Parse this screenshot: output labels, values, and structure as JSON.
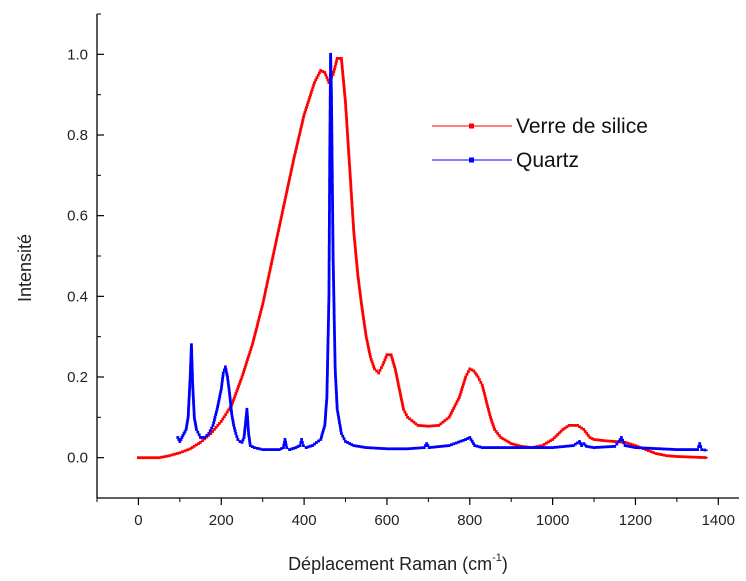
{
  "chart_data": {
    "type": "line",
    "title": "",
    "xlabel": "Déplacement Raman (cm",
    "xlabel_sup": "-1",
    "xlabel_end": ")",
    "ylabel": "Intensité",
    "xlim": [
      -100,
      1450
    ],
    "ylim": [
      -0.1,
      1.1
    ],
    "xticks": [
      0,
      200,
      400,
      600,
      800,
      1000,
      1200,
      1400
    ],
    "yticks": [
      0.0,
      0.2,
      0.4,
      0.6,
      0.8,
      1.0
    ],
    "xtick_labels": [
      "0",
      "200",
      "400",
      "600",
      "800",
      "1000",
      "1200",
      "1400"
    ],
    "ytick_labels": [
      "0.0",
      "0.2",
      "0.4",
      "0.6",
      "0.8",
      "1.0"
    ],
    "grid": false,
    "legend_position": "upper-right",
    "series": [
      {
        "name": "Verre de silice",
        "color": "#ff0000",
        "x": [
          0,
          50,
          75,
          100,
          125,
          150,
          175,
          200,
          225,
          250,
          275,
          300,
          325,
          350,
          375,
          400,
          425,
          440,
          450,
          460,
          470,
          480,
          490,
          500,
          510,
          520,
          530,
          540,
          550,
          560,
          570,
          580,
          590,
          600,
          610,
          620,
          630,
          640,
          650,
          675,
          700,
          725,
          750,
          775,
          790,
          800,
          810,
          820,
          830,
          840,
          850,
          860,
          875,
          900,
          925,
          950,
          975,
          1000,
          1025,
          1040,
          1060,
          1075,
          1090,
          1100,
          1125,
          1150,
          1175,
          1200,
          1225,
          1250,
          1275,
          1300,
          1325,
          1350,
          1375
        ],
        "y": [
          0.0,
          0.0,
          0.005,
          0.012,
          0.022,
          0.038,
          0.06,
          0.09,
          0.13,
          0.2,
          0.28,
          0.38,
          0.5,
          0.62,
          0.74,
          0.85,
          0.93,
          0.96,
          0.955,
          0.93,
          0.95,
          0.99,
          0.99,
          0.88,
          0.72,
          0.56,
          0.45,
          0.37,
          0.3,
          0.25,
          0.22,
          0.21,
          0.23,
          0.255,
          0.255,
          0.22,
          0.17,
          0.12,
          0.1,
          0.08,
          0.078,
          0.08,
          0.1,
          0.15,
          0.2,
          0.22,
          0.215,
          0.2,
          0.18,
          0.14,
          0.1,
          0.07,
          0.05,
          0.035,
          0.028,
          0.025,
          0.03,
          0.045,
          0.07,
          0.08,
          0.08,
          0.07,
          0.05,
          0.045,
          0.042,
          0.04,
          0.038,
          0.03,
          0.02,
          0.01,
          0.005,
          0.003,
          0.002,
          0.001,
          0.0
        ]
      },
      {
        "name": "Quartz",
        "color": "#0000ff",
        "x": [
          95,
          100,
          105,
          110,
          115,
          120,
          125,
          128,
          131,
          135,
          140,
          150,
          160,
          170,
          180,
          190,
          200,
          205,
          210,
          215,
          220,
          225,
          230,
          235,
          240,
          245,
          250,
          255,
          262,
          266,
          270,
          280,
          300,
          320,
          340,
          350,
          354,
          358,
          365,
          380,
          390,
          394,
          398,
          405,
          420,
          440,
          450,
          455,
          460,
          462,
          464,
          466,
          470,
          475,
          480,
          490,
          500,
          520,
          550,
          600,
          650,
          690,
          696,
          702,
          750,
          790,
          800,
          806,
          812,
          830,
          900,
          1000,
          1050,
          1065,
          1070,
          1075,
          1082,
          1100,
          1150,
          1160,
          1166,
          1175,
          1200,
          1300,
          1350,
          1355,
          1360,
          1375
        ],
        "y": [
          0.05,
          0.04,
          0.05,
          0.06,
          0.07,
          0.1,
          0.2,
          0.28,
          0.18,
          0.1,
          0.07,
          0.05,
          0.05,
          0.06,
          0.08,
          0.12,
          0.17,
          0.21,
          0.225,
          0.2,
          0.16,
          0.11,
          0.08,
          0.06,
          0.045,
          0.04,
          0.038,
          0.05,
          0.12,
          0.06,
          0.03,
          0.025,
          0.02,
          0.02,
          0.02,
          0.025,
          0.045,
          0.025,
          0.02,
          0.025,
          0.03,
          0.045,
          0.03,
          0.025,
          0.03,
          0.045,
          0.08,
          0.15,
          0.4,
          0.75,
          1.0,
          0.9,
          0.5,
          0.22,
          0.12,
          0.06,
          0.04,
          0.03,
          0.025,
          0.022,
          0.022,
          0.025,
          0.035,
          0.025,
          0.03,
          0.045,
          0.05,
          0.04,
          0.03,
          0.025,
          0.025,
          0.025,
          0.03,
          0.04,
          0.03,
          0.035,
          0.028,
          0.025,
          0.028,
          0.04,
          0.05,
          0.03,
          0.025,
          0.02,
          0.02,
          0.035,
          0.02,
          0.018
        ]
      }
    ]
  }
}
